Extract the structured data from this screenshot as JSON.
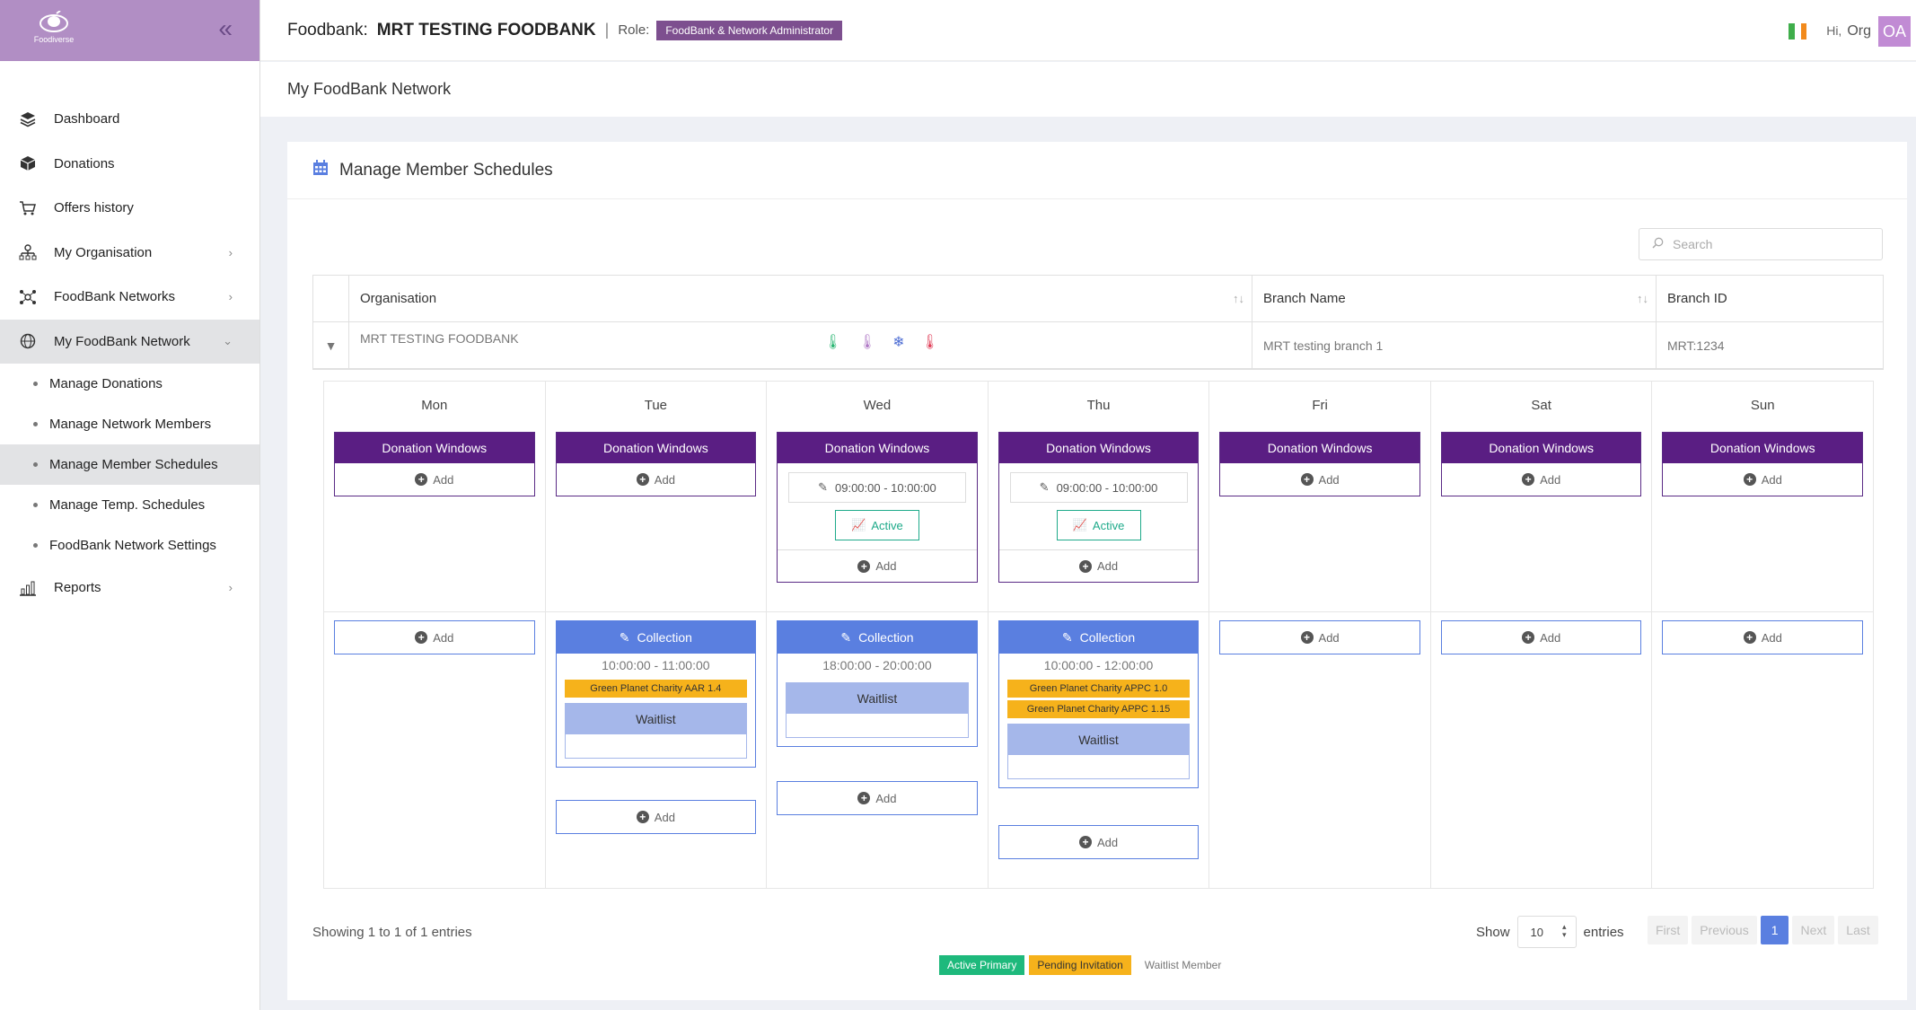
{
  "app": {
    "logo_text": "Foodiverse"
  },
  "sidebar": {
    "items": [
      {
        "label": "Dashboard",
        "icon": "layers-icon"
      },
      {
        "label": "Donations",
        "icon": "box-icon"
      },
      {
        "label": "Offers history",
        "icon": "cart-icon"
      },
      {
        "label": "My Organisation",
        "icon": "org-chart-icon"
      },
      {
        "label": "FoodBank Networks",
        "icon": "network-icon"
      },
      {
        "label": "My FoodBank Network",
        "icon": "globe-icon"
      }
    ],
    "subitems": [
      {
        "label": "Manage Donations"
      },
      {
        "label": "Manage Network Members"
      },
      {
        "label": "Manage Member Schedules"
      },
      {
        "label": "Manage Temp. Schedules"
      },
      {
        "label": "FoodBank Network Settings"
      }
    ],
    "reports": {
      "label": "Reports",
      "icon": "bar-chart-icon"
    }
  },
  "header": {
    "foodbank_label": "Foodbank:",
    "foodbank_name": "MRT TESTING FOODBANK",
    "role_label": "Role:",
    "role_badge": "FoodBank & Network Administrator",
    "greeting": "Hi,",
    "user": "Org",
    "avatar": "OA"
  },
  "subheader": {
    "title": "My FoodBank Network"
  },
  "card": {
    "title": "Manage Member Schedules"
  },
  "search": {
    "placeholder": "Search"
  },
  "table": {
    "columns": [
      "Organisation",
      "Branch Name",
      "Branch ID"
    ],
    "row": {
      "organisation": "MRT TESTING FOODBANK",
      "branch_name": "MRT testing branch 1",
      "branch_id": "MRT:1234"
    }
  },
  "schedule": {
    "days": [
      "Mon",
      "Tue",
      "Wed",
      "Thu",
      "Fri",
      "Sat",
      "Sun"
    ],
    "donation_windows_label": "Donation Windows",
    "add_label": "Add",
    "active_label": "Active",
    "collection_label": "Collection",
    "waitlist_label": "Waitlist",
    "wed_window": "09:00:00 - 10:00:00",
    "thu_window": "09:00:00 - 10:00:00",
    "tue_collection": {
      "time": "10:00:00 - 11:00:00",
      "tags": [
        "Green Planet Charity AAR 1.4"
      ]
    },
    "wed_collection": {
      "time": "18:00:00 - 20:00:00",
      "tags": []
    },
    "thu_collection": {
      "time": "10:00:00 - 12:00:00",
      "tags": [
        "Green Planet Charity APPC 1.0",
        "Green Planet Charity APPC 1.15"
      ]
    }
  },
  "footer": {
    "info": "Showing 1 to 1 of 1 entries",
    "show_label": "Show",
    "entries_value": "10",
    "entries_label": "entries",
    "pager": [
      "First",
      "Previous",
      "1",
      "Next",
      "Last"
    ]
  },
  "legend": [
    "Active Primary",
    "Pending Invitation",
    "Waitlist Member"
  ],
  "colors": {
    "brand": "#b18ec4",
    "donation_window": "#5a1e83",
    "collection": "#5a7fe0",
    "active": "#1eaa8a",
    "pending": "#f6b21b"
  }
}
